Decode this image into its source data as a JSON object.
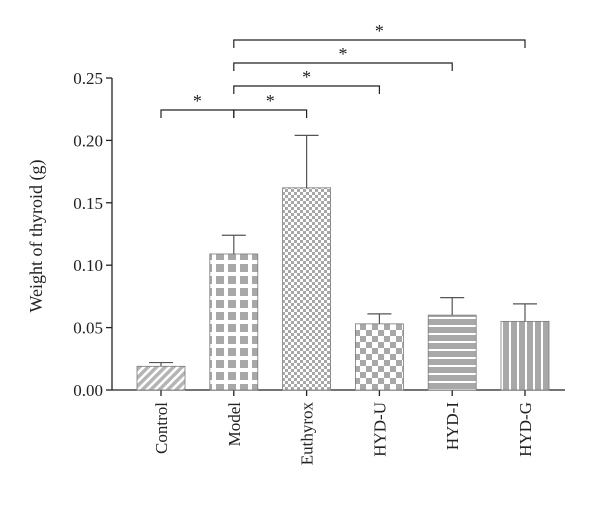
{
  "chart_data": {
    "type": "bar",
    "title": "",
    "xlabel": "",
    "ylabel": "Weight of thyroid (g)",
    "ylim": [
      0,
      0.25
    ],
    "yticks": [
      "0.00",
      "0.05",
      "0.10",
      "0.15",
      "0.20",
      "0.25"
    ],
    "grid": false,
    "categories": [
      "Control",
      "Model",
      "Euthyrox",
      "HYD-U",
      "HYD-I",
      "HYD-G"
    ],
    "values": [
      0.019,
      0.109,
      0.162,
      0.053,
      0.06,
      0.055
    ],
    "errors": [
      0.003,
      0.015,
      0.042,
      0.008,
      0.014,
      0.014
    ],
    "bar_patterns": [
      "diagonal-hatch",
      "large-check",
      "fine-check",
      "medium-check",
      "horizontal-stripes",
      "vertical-stripes"
    ],
    "significance": [
      {
        "from": "Control",
        "to": "Model",
        "label": "*"
      },
      {
        "from": "Model",
        "to": "Euthyrox",
        "label": "*"
      },
      {
        "from": "Model",
        "to": "HYD-U",
        "label": "*"
      },
      {
        "from": "Model",
        "to": "HYD-I",
        "label": "*"
      },
      {
        "from": "Model",
        "to": "HYD-G",
        "label": "*"
      }
    ],
    "colors": {
      "bar": "#a8a8a8",
      "pattern": "#ffffff",
      "axis": "#222222"
    }
  }
}
